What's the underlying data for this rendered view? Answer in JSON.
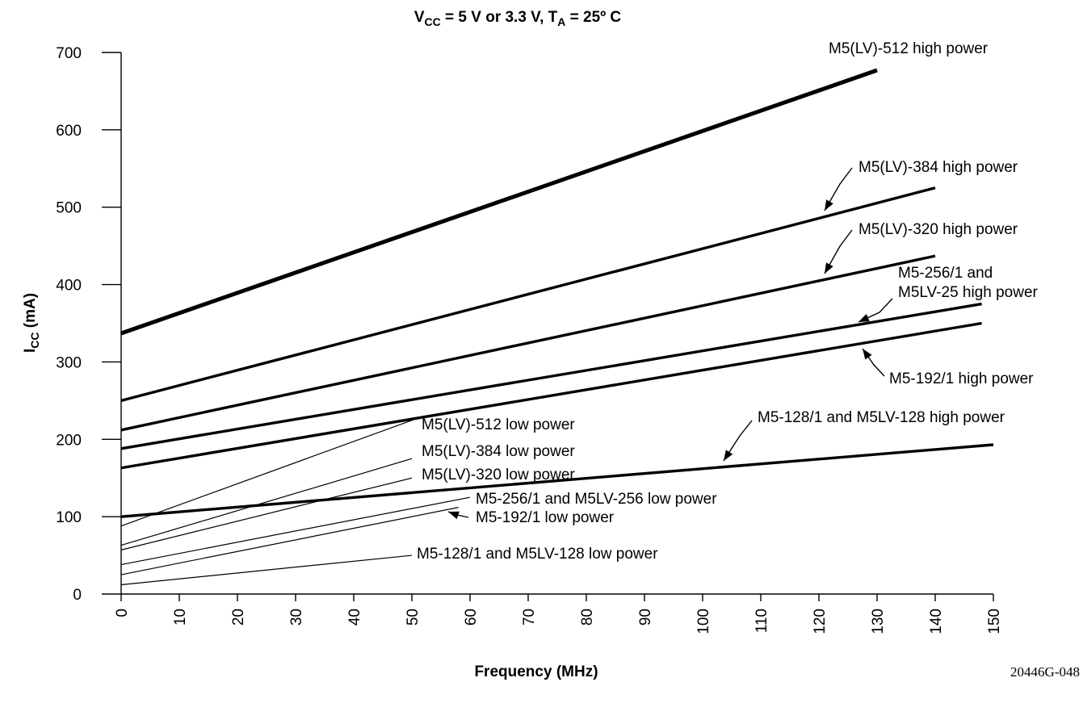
{
  "chart_data": {
    "type": "line",
    "title_parts": {
      "v": "V",
      "v_sub": "CC",
      "mid": " = 5 V or 3.3 V, T",
      "t_sub": "A",
      "end": " = 25º C"
    },
    "xlabel": "Frequency (MHz)",
    "ylabel_main": "I",
    "ylabel_sub": "CC",
    "ylabel_unit": " (mA)",
    "figure_id": "20446G-048",
    "xlim": [
      0,
      150
    ],
    "ylim": [
      0,
      700
    ],
    "xticks": [
      0,
      10,
      20,
      30,
      40,
      50,
      60,
      70,
      80,
      90,
      100,
      110,
      120,
      130,
      140,
      150
    ],
    "yticks": [
      0,
      100,
      200,
      300,
      400,
      500,
      600,
      700
    ],
    "series": [
      {
        "name": "M5(LV)-512 high power",
        "power": "high",
        "x": [
          0,
          130
        ],
        "y": [
          337,
          677
        ]
      },
      {
        "name": "M5(LV)-384 high power",
        "power": "high",
        "x": [
          0,
          140
        ],
        "y": [
          250,
          525
        ]
      },
      {
        "name": "M5(LV)-320 high power",
        "power": "high",
        "x": [
          0,
          140
        ],
        "y": [
          212,
          437
        ]
      },
      {
        "name_lines": [
          "M5-256/1 and",
          "M5LV-25 high power"
        ],
        "power": "high",
        "x": [
          0,
          148
        ],
        "y": [
          188,
          375
        ]
      },
      {
        "name": "M5-192/1 high power",
        "power": "high",
        "x": [
          0,
          148
        ],
        "y": [
          163,
          350
        ]
      },
      {
        "name": "M5-128/1 and M5LV-128 high power",
        "power": "high",
        "x": [
          0,
          150
        ],
        "y": [
          100,
          193
        ]
      },
      {
        "name": "M5(LV)-512 low power",
        "power": "low",
        "x": [
          0,
          52
        ],
        "y": [
          88,
          230
        ]
      },
      {
        "name": "M5(LV)-384 low power",
        "power": "low",
        "x": [
          0,
          50
        ],
        "y": [
          63,
          175
        ]
      },
      {
        "name": "M5(LV)-320 low power",
        "power": "low",
        "x": [
          0,
          50
        ],
        "y": [
          57,
          150
        ]
      },
      {
        "name": "M5-256/1 and M5LV-256 low power",
        "power": "low",
        "x": [
          0,
          60
        ],
        "y": [
          38,
          125
        ]
      },
      {
        "name": "M5-192/1 low power",
        "power": "low",
        "x": [
          0,
          58
        ],
        "y": [
          25,
          112
        ]
      },
      {
        "name": "M5-128/1 and M5LV-128 low power",
        "power": "low",
        "x": [
          0,
          50
        ],
        "y": [
          12,
          50
        ]
      }
    ]
  }
}
